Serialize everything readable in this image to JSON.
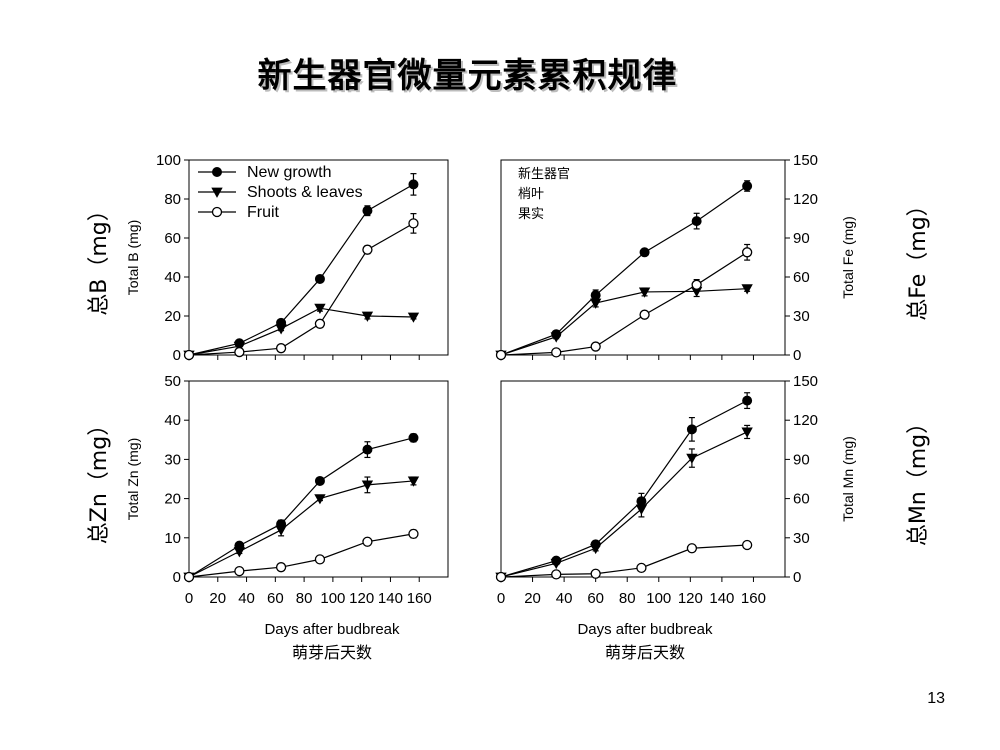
{
  "slide": {
    "title": "新生器官微量元素累积规律",
    "page_number": "13"
  },
  "colors": {
    "ink": "#000000",
    "open_marker_fill": "#ffffff",
    "title_shadow": "#bdbdbd"
  },
  "legend": {
    "entries": [
      "New growth",
      "Shoots & leaves",
      "Fruit"
    ],
    "cn_entries": [
      "新生器官",
      "梢叶",
      "果实"
    ]
  },
  "x_axis": {
    "label": "Days after budbreak",
    "label_cn": "萌芽后天数",
    "ticks": [
      0,
      20,
      40,
      60,
      80,
      100,
      120,
      140,
      160
    ],
    "range": [
      0,
      180
    ]
  },
  "chart_data": [
    {
      "type": "line",
      "panel": "top-left",
      "y_side": "left",
      "ylabel": "Total B (mg)",
      "ylabel_cn": "总B（mg）",
      "ylim": [
        0,
        100
      ],
      "yticks": [
        0,
        20,
        40,
        60,
        80,
        100
      ],
      "x": [
        0,
        35,
        64,
        91,
        124,
        156
      ],
      "series": [
        {
          "name": "New growth",
          "marker": "filled-circle",
          "values": [
            0,
            6,
            16.5,
            39,
            74,
            87.5
          ],
          "errors": [
            0,
            1,
            1.5,
            1.5,
            2.5,
            5.5
          ]
        },
        {
          "name": "Shoots & leaves",
          "marker": "filled-triangle-down",
          "values": [
            0,
            4.5,
            13.5,
            24,
            20,
            19.5
          ],
          "errors": [
            0,
            0.5,
            1,
            1.5,
            1.5,
            1
          ]
        },
        {
          "name": "Fruit",
          "marker": "open-circle",
          "values": [
            0,
            1.5,
            3.5,
            16,
            54,
            67.5
          ],
          "errors": [
            0,
            0,
            0.5,
            1,
            2,
            5
          ]
        }
      ]
    },
    {
      "type": "line",
      "panel": "top-right",
      "y_side": "right",
      "ylabel": "Total Fe (mg)",
      "ylabel_cn": "总Fe（mg）",
      "ylim": [
        0,
        150
      ],
      "yticks": [
        0,
        30,
        60,
        90,
        120,
        150
      ],
      "x": [
        0,
        35,
        60,
        91,
        124,
        156
      ],
      "series": [
        {
          "name": "New growth",
          "marker": "filled-circle",
          "values": [
            0,
            16,
            46,
            79,
            103,
            130
          ],
          "errors": [
            0,
            2,
            4,
            2,
            6,
            4
          ]
        },
        {
          "name": "Shoots & leaves",
          "marker": "filled-triangle-down",
          "values": [
            0,
            14,
            40,
            48.5,
            49,
            51
          ],
          "errors": [
            0,
            1.5,
            3,
            3,
            4,
            2
          ]
        },
        {
          "name": "Fruit",
          "marker": "open-circle",
          "values": [
            0,
            2,
            6.5,
            31,
            54,
            79
          ],
          "errors": [
            0,
            0,
            0.5,
            1,
            4,
            6
          ]
        }
      ]
    },
    {
      "type": "line",
      "panel": "bottom-left",
      "y_side": "left",
      "ylabel": "Total Zn (mg)",
      "ylabel_cn": "总Zn（mg）",
      "ylim": [
        0,
        50
      ],
      "yticks": [
        0,
        10,
        20,
        30,
        40,
        50
      ],
      "x": [
        0,
        35,
        64,
        91,
        124,
        156
      ],
      "series": [
        {
          "name": "New growth",
          "marker": "filled-circle",
          "values": [
            0,
            8,
            13.5,
            24.5,
            32.5,
            35.5
          ],
          "errors": [
            0,
            0.5,
            1,
            0.5,
            2,
            1
          ]
        },
        {
          "name": "Shoots & leaves",
          "marker": "filled-triangle-down",
          "values": [
            0,
            6.5,
            12,
            20,
            23.5,
            24.5
          ],
          "errors": [
            0,
            0.5,
            1.5,
            0.5,
            2,
            1
          ]
        },
        {
          "name": "Fruit",
          "marker": "open-circle",
          "values": [
            0,
            1.5,
            2.5,
            4.5,
            9,
            11
          ],
          "errors": [
            0,
            0,
            0,
            0.5,
            0.5,
            1
          ]
        }
      ]
    },
    {
      "type": "line",
      "panel": "bottom-right",
      "y_side": "right",
      "ylabel": "Total Mn (mg)",
      "ylabel_cn": "总Mn（mg）",
      "ylim": [
        0,
        150
      ],
      "yticks": [
        0,
        30,
        60,
        90,
        120,
        150
      ],
      "x": [
        0,
        35,
        60,
        89,
        121,
        156
      ],
      "series": [
        {
          "name": "New growth",
          "marker": "filled-circle",
          "values": [
            0,
            12.5,
            25,
            58,
            113,
            135
          ],
          "errors": [
            0,
            1.5,
            1.5,
            6,
            9,
            6
          ]
        },
        {
          "name": "Shoots & leaves",
          "marker": "filled-triangle-down",
          "values": [
            0,
            10.5,
            22,
            52,
            91,
            111
          ],
          "errors": [
            0,
            1,
            2,
            6,
            7,
            5
          ]
        },
        {
          "name": "Fruit",
          "marker": "open-circle",
          "values": [
            0,
            2,
            2.5,
            7,
            22,
            24.5
          ],
          "errors": [
            0,
            0,
            0,
            0.5,
            1,
            1
          ]
        }
      ]
    }
  ]
}
